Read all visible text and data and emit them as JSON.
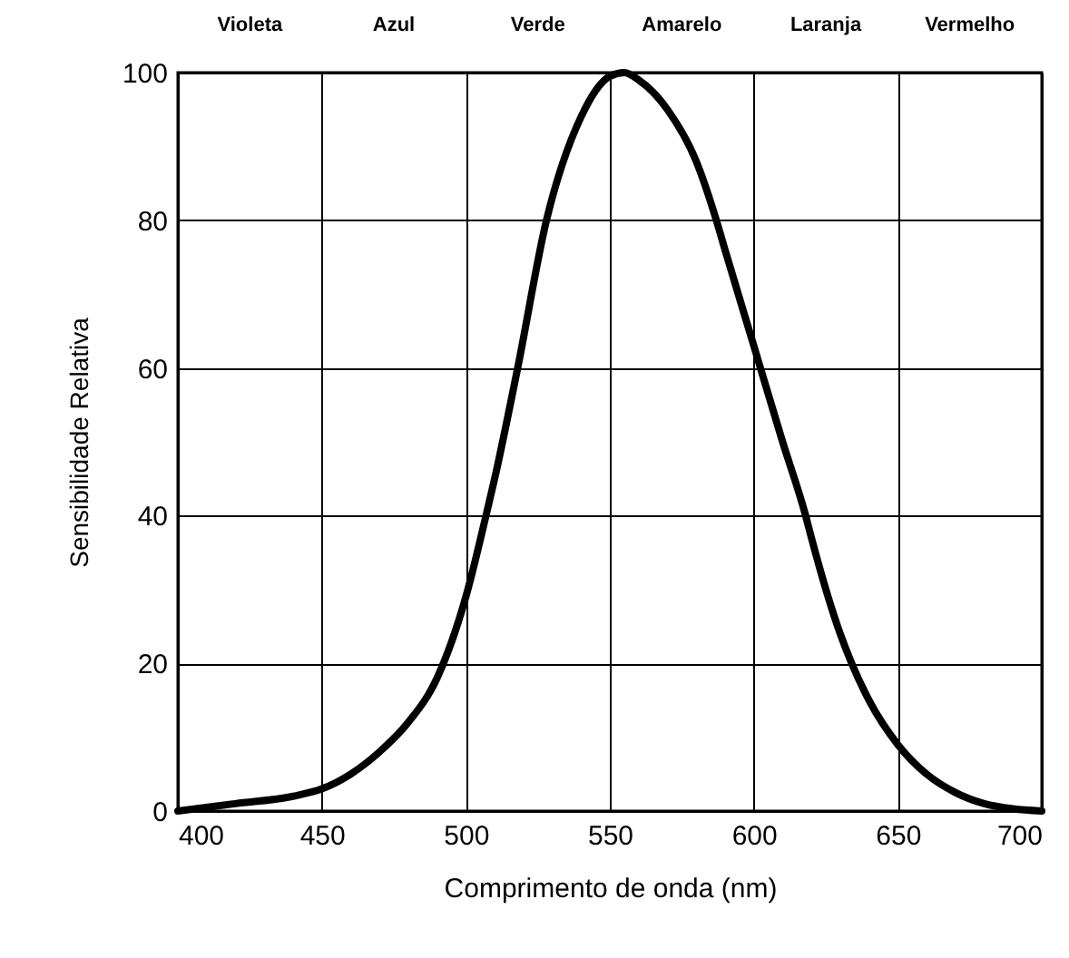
{
  "chart_data": {
    "type": "line",
    "xlabel": "Comprimento de onda (nm)",
    "ylabel": "Sensibilidade Relativa",
    "x": [
      400,
      420,
      440,
      450,
      460,
      470,
      480,
      490,
      500,
      507,
      510,
      518,
      528,
      540,
      550,
      555,
      560,
      570,
      580,
      587,
      590,
      600,
      610,
      618,
      620,
      630,
      634,
      640,
      650,
      660,
      670,
      680,
      690,
      700
    ],
    "series": [
      {
        "color": "#000000",
        "values": [
          0,
          1,
          2,
          3,
          5,
          8,
          12,
          18,
          29,
          40,
          45,
          60,
          80,
          94,
          99.5,
          100,
          99,
          95,
          88,
          80,
          76,
          63,
          50,
          40,
          37,
          24,
          20,
          15,
          9,
          5,
          2.5,
          1,
          0.3,
          0
        ]
      }
    ],
    "xlim": [
      400,
      700
    ],
    "xticks": [
      400,
      450,
      500,
      550,
      600,
      650,
      700
    ],
    "ylim": [
      0,
      100
    ],
    "yticks": [
      0,
      20,
      40,
      60,
      80,
      100
    ],
    "annotations": [
      "Violeta",
      "Azul",
      "Verde",
      "Amarelo",
      "Laranja",
      "Vermelho"
    ],
    "grid": true,
    "marker": "none",
    "line_style": "solid"
  }
}
